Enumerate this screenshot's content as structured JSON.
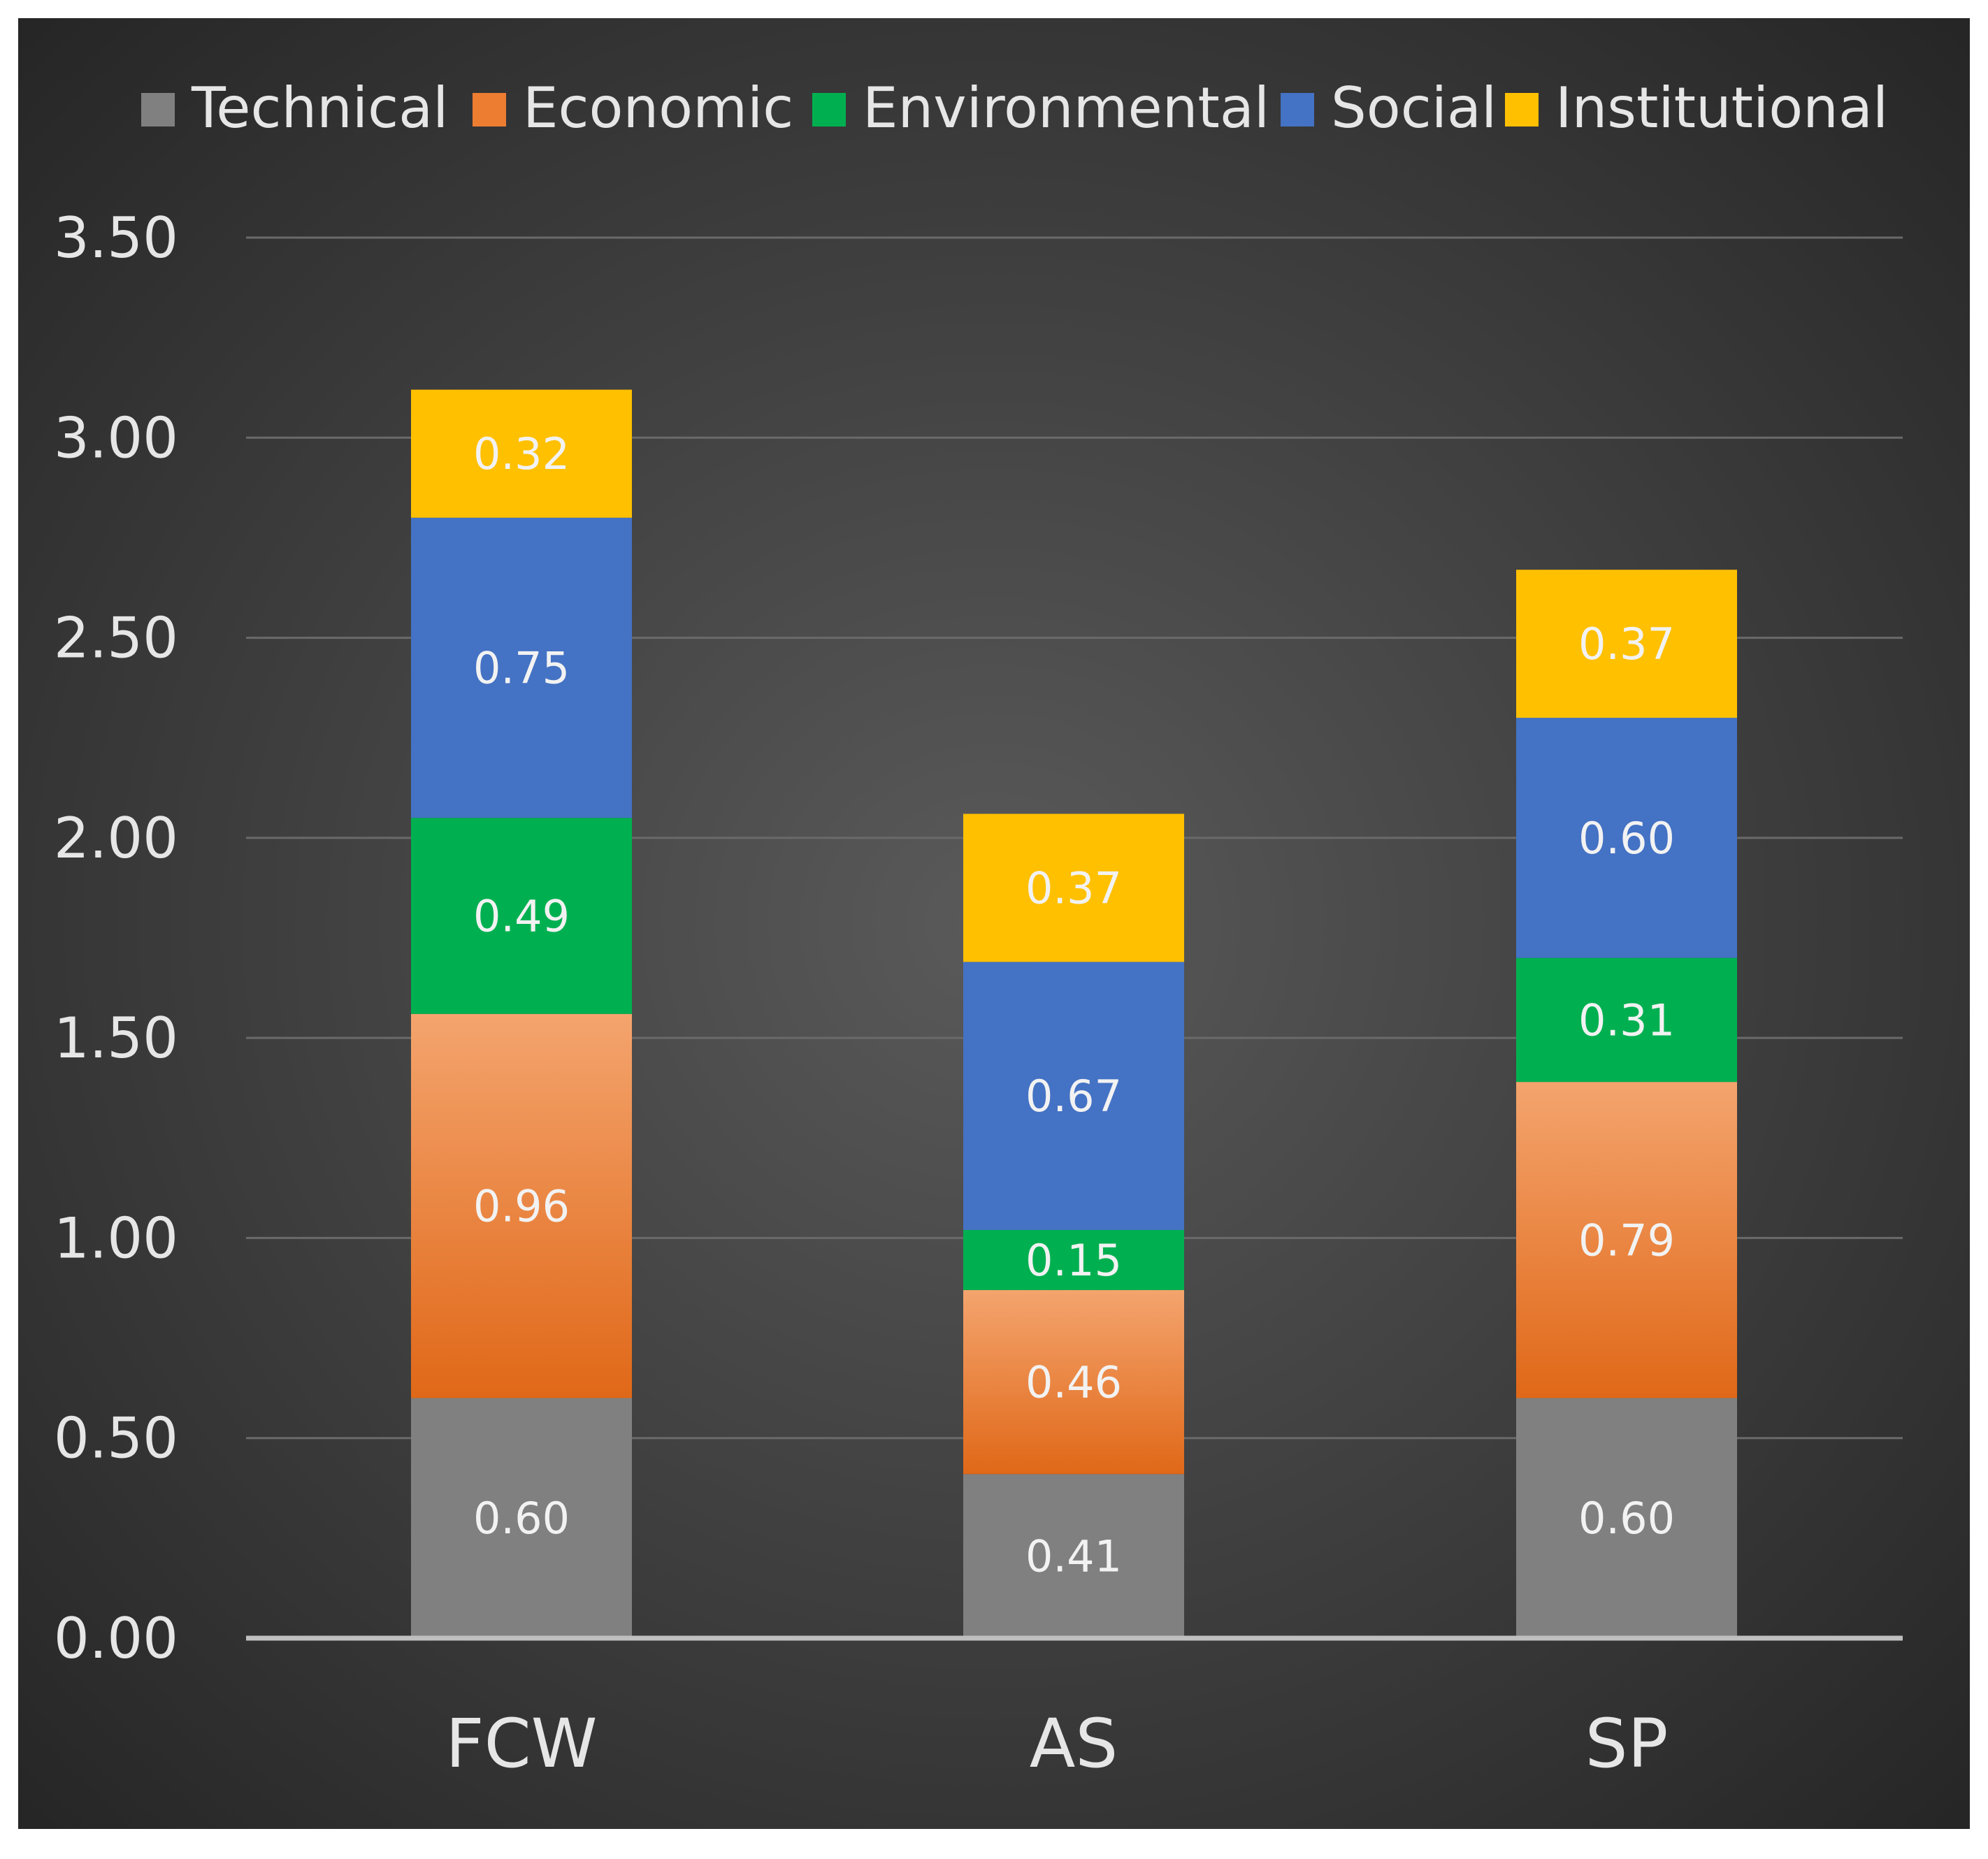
{
  "chart_data": {
    "type": "bar",
    "stacked": true,
    "title": "",
    "xlabel": "",
    "ylabel": "",
    "categories": [
      "FCW",
      "AS",
      "SP"
    ],
    "ylim": [
      0,
      3.5
    ],
    "yticks": [
      "0.00",
      "0.50",
      "1.00",
      "1.50",
      "2.00",
      "2.50",
      "3.00",
      "3.50"
    ],
    "yticks_values": [
      0,
      0.5,
      1.0,
      1.5,
      2.0,
      2.5,
      3.0,
      3.5
    ],
    "grid": true,
    "legend_position": "top",
    "series": [
      {
        "name": "Technical",
        "color": "#808080",
        "values": [
          0.6,
          0.41,
          0.6
        ],
        "labels": [
          "0.60",
          "0.41",
          "0.60"
        ]
      },
      {
        "name": "Economic",
        "color": "#ED7D31",
        "values": [
          0.96,
          0.46,
          0.79
        ],
        "labels": [
          "0.96",
          "0.46",
          "0.79"
        ]
      },
      {
        "name": "Environmental",
        "color": "#00B050",
        "values": [
          0.49,
          0.15,
          0.31
        ],
        "labels": [
          "0.49",
          "0.15",
          "0.31"
        ]
      },
      {
        "name": "Social",
        "color": "#4472C4",
        "values": [
          0.75,
          0.67,
          0.6
        ],
        "labels": [
          "0.75",
          "0.67",
          "0.60"
        ]
      },
      {
        "name": "Institutional",
        "color": "#FFC000",
        "values": [
          0.32,
          0.37,
          0.37
        ],
        "labels": [
          "0.32",
          "0.37",
          "0.37"
        ]
      }
    ]
  },
  "colors": {
    "background_center": "#5a5a5a",
    "background_edge": "#262626",
    "grid": "#6a6a6a",
    "axis": "#bfbfbf",
    "text": "#e6e6e6",
    "label_text": "#f2f2f2"
  }
}
